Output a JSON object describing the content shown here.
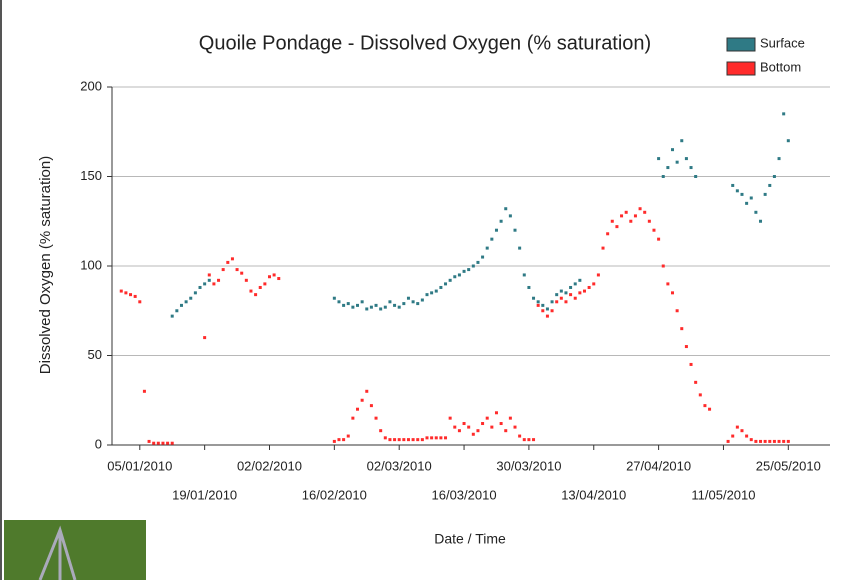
{
  "chart_data": {
    "type": "scatter",
    "title": "Quoile Pondage - Dissolved Oxygen (% saturation)",
    "x_label": "Date / Time",
    "y_label": "Dissolved Oxygen (% saturation)",
    "x": [
      "01/01/2010",
      "02/01/2010",
      "03/01/2010",
      "04/01/2010",
      "05/01/2010",
      "06/01/2010",
      "07/01/2010",
      "08/01/2010",
      "09/01/2010",
      "10/01/2010",
      "11/01/2010",
      "12/01/2010",
      "13/01/2010",
      "14/01/2010",
      "15/01/2010",
      "16/01/2010",
      "17/01/2010",
      "18/01/2010",
      "19/01/2010",
      "20/01/2010",
      "21/01/2010",
      "22/01/2010",
      "23/01/2010",
      "24/01/2010",
      "25/01/2010",
      "26/01/2010",
      "27/01/2010",
      "28/01/2010",
      "29/01/2010",
      "30/01/2010",
      "31/01/2010",
      "01/02/2010",
      "02/02/2010",
      "03/02/2010",
      "04/02/2010",
      "05/02/2010",
      "06/02/2010",
      "07/02/2010",
      "08/02/2010",
      "09/02/2010",
      "10/02/2010",
      "11/02/2010",
      "12/02/2010",
      "13/02/2010",
      "14/02/2010",
      "15/02/2010",
      "16/02/2010",
      "17/02/2010",
      "18/02/2010",
      "19/02/2010",
      "20/02/2010",
      "21/02/2010",
      "22/02/2010",
      "23/02/2010",
      "24/02/2010",
      "25/02/2010",
      "26/02/2010",
      "27/02/2010",
      "28/02/2010",
      "01/03/2010",
      "02/03/2010",
      "03/03/2010",
      "04/03/2010",
      "05/03/2010",
      "06/03/2010",
      "07/03/2010",
      "08/03/2010",
      "09/03/2010",
      "10/03/2010",
      "11/03/2010",
      "12/03/2010",
      "13/03/2010",
      "14/03/2010",
      "15/03/2010",
      "16/03/2010",
      "17/03/2010",
      "18/03/2010",
      "19/03/2010",
      "20/03/2010",
      "21/03/2010",
      "22/03/2010",
      "23/03/2010",
      "24/03/2010",
      "25/03/2010",
      "26/03/2010",
      "27/03/2010",
      "28/03/2010",
      "29/03/2010",
      "30/03/2010",
      "31/03/2010",
      "01/04/2010",
      "02/04/2010",
      "03/04/2010",
      "04/04/2010",
      "05/04/2010",
      "06/04/2010",
      "07/04/2010",
      "08/04/2010",
      "09/04/2010",
      "10/04/2010",
      "11/04/2010",
      "12/04/2010",
      "13/04/2010",
      "14/04/2010",
      "15/04/2010",
      "16/04/2010",
      "17/04/2010",
      "18/04/2010",
      "19/04/2010",
      "20/04/2010",
      "21/04/2010",
      "22/04/2010",
      "23/04/2010",
      "24/04/2010",
      "25/04/2010",
      "26/04/2010",
      "27/04/2010",
      "28/04/2010",
      "29/04/2010",
      "30/04/2010",
      "01/05/2010",
      "02/05/2010",
      "03/05/2010",
      "04/05/2010",
      "05/05/2010",
      "06/05/2010",
      "07/05/2010",
      "08/05/2010",
      "09/05/2010",
      "10/05/2010",
      "11/05/2010",
      "12/05/2010",
      "13/05/2010",
      "14/05/2010",
      "15/05/2010",
      "16/05/2010",
      "17/05/2010",
      "18/05/2010",
      "19/05/2010",
      "20/05/2010",
      "21/05/2010",
      "22/05/2010",
      "23/05/2010",
      "24/05/2010",
      "25/05/2010",
      "26/05/2010"
    ],
    "series": [
      {
        "name": "Surface",
        "color": "#2f7a85",
        "values": [
          null,
          null,
          null,
          null,
          null,
          null,
          null,
          null,
          null,
          null,
          null,
          72,
          75,
          78,
          80,
          82,
          85,
          88,
          90,
          92,
          null,
          null,
          null,
          null,
          null,
          null,
          null,
          null,
          null,
          null,
          null,
          null,
          null,
          null,
          null,
          null,
          null,
          null,
          null,
          null,
          null,
          null,
          null,
          null,
          null,
          null,
          82,
          80,
          78,
          79,
          77,
          78,
          80,
          76,
          77,
          78,
          76,
          77,
          80,
          78,
          77,
          79,
          82,
          80,
          79,
          81,
          84,
          85,
          86,
          88,
          90,
          92,
          94,
          95,
          97,
          98,
          100,
          102,
          105,
          110,
          115,
          120,
          125,
          132,
          128,
          120,
          110,
          95,
          88,
          82,
          80,
          78,
          76,
          80,
          84,
          86,
          85,
          88,
          90,
          92,
          null,
          null,
          null,
          null,
          null,
          null,
          null,
          null,
          null,
          null,
          null,
          null,
          null,
          null,
          null,
          null,
          160,
          150,
          155,
          165,
          158,
          170,
          160,
          155,
          150,
          null,
          null,
          null,
          null,
          null,
          null,
          null,
          145,
          142,
          140,
          135,
          138,
          130,
          125,
          140,
          145,
          150,
          160,
          185,
          170,
          null
        ]
      },
      {
        "name": "Bottom",
        "color": "#ff2b2b",
        "values": [
          86,
          85,
          84,
          83,
          80,
          30,
          2,
          1,
          1,
          1,
          1,
          1,
          null,
          null,
          null,
          null,
          null,
          null,
          60,
          95,
          90,
          92,
          98,
          102,
          104,
          98,
          96,
          92,
          86,
          84,
          88,
          90,
          94,
          95,
          93,
          null,
          null,
          null,
          null,
          null,
          null,
          null,
          null,
          null,
          null,
          null,
          2,
          3,
          3,
          5,
          15,
          20,
          25,
          30,
          22,
          15,
          8,
          4,
          3,
          3,
          3,
          3,
          3,
          3,
          3,
          3,
          4,
          4,
          4,
          4,
          4,
          15,
          10,
          8,
          12,
          10,
          6,
          8,
          12,
          15,
          10,
          18,
          12,
          8,
          15,
          10,
          5,
          3,
          3,
          3,
          78,
          75,
          72,
          75,
          80,
          82,
          80,
          84,
          82,
          85,
          86,
          88,
          90,
          95,
          110,
          118,
          125,
          122,
          128,
          130,
          125,
          128,
          132,
          130,
          125,
          120,
          115,
          100,
          90,
          85,
          75,
          65,
          55,
          45,
          35,
          28,
          22,
          20,
          null,
          null,
          null,
          2,
          5,
          10,
          8,
          5,
          3,
          2,
          2,
          2,
          2,
          2,
          2,
          2,
          2,
          null
        ]
      }
    ],
    "xlim": [
      "30/12/2009",
      "03/06/2010"
    ],
    "xticks": [
      "05/01/2010",
      "19/01/2010",
      "02/02/2010",
      "16/02/2010",
      "02/03/2010",
      "16/03/2010",
      "30/03/2010",
      "13/04/2010",
      "27/04/2010",
      "11/05/2010",
      "25/05/2010"
    ],
    "ylim": [
      0,
      200
    ],
    "yticks": [
      0,
      50,
      100,
      150,
      200
    ],
    "grid": true,
    "legend": "upper right"
  }
}
